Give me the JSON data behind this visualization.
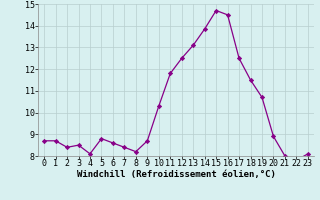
{
  "x": [
    0,
    1,
    2,
    3,
    4,
    5,
    6,
    7,
    8,
    9,
    10,
    11,
    12,
    13,
    14,
    15,
    16,
    17,
    18,
    19,
    20,
    21,
    22,
    23
  ],
  "y": [
    8.7,
    8.7,
    8.4,
    8.5,
    8.1,
    8.8,
    8.6,
    8.4,
    8.2,
    8.7,
    10.3,
    11.8,
    12.5,
    13.1,
    13.85,
    14.7,
    14.5,
    12.5,
    11.5,
    10.7,
    8.9,
    8.0,
    7.8,
    8.1
  ],
  "line_color": "#880088",
  "marker": "D",
  "marker_size": 2.2,
  "bg_color": "#d8f0f0",
  "grid_color": "#b8cece",
  "xlabel": "Windchill (Refroidissement éolien,°C)",
  "xlabel_fontsize": 6.5,
  "tick_fontsize": 6.0,
  "ylim": [
    8,
    15
  ],
  "xlim": [
    -0.5,
    23.5
  ],
  "yticks": [
    8,
    9,
    10,
    11,
    12,
    13,
    14,
    15
  ],
  "xticks": [
    0,
    1,
    2,
    3,
    4,
    5,
    6,
    7,
    8,
    9,
    10,
    11,
    12,
    13,
    14,
    15,
    16,
    17,
    18,
    19,
    20,
    21,
    22,
    23
  ],
  "linewidth": 0.9
}
